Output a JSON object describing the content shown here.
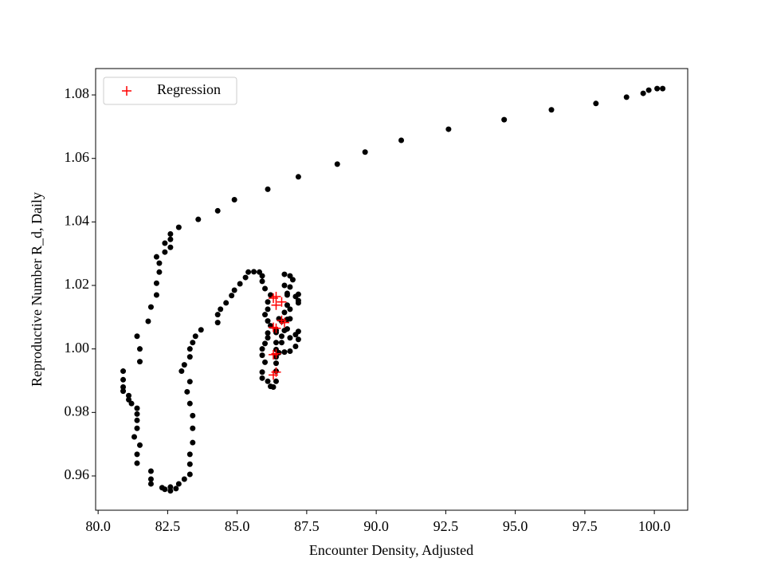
{
  "chart_data": {
    "type": "scatter",
    "xlabel": "Encounter Density, Adjusted",
    "ylabel": "Reproductive Number R_d, Daily",
    "xlim": [
      79.91,
      101.2
    ],
    "ylim": [
      0.9492,
      1.0883
    ],
    "xticks": [
      {
        "value": 80,
        "label": "80.0"
      },
      {
        "value": 82.5,
        "label": "82.5"
      },
      {
        "value": 85,
        "label": "85.0"
      },
      {
        "value": 87.5,
        "label": "87.5"
      },
      {
        "value": 90,
        "label": "90.0"
      },
      {
        "value": 92.5,
        "label": "92.5"
      },
      {
        "value": 95,
        "label": "95.0"
      },
      {
        "value": 97.5,
        "label": "97.5"
      },
      {
        "value": 100,
        "label": "100.0"
      }
    ],
    "yticks": [
      0.96,
      0.98,
      {
        "value": 1,
        "label": "1.00"
      },
      1.02,
      1.04,
      1.06,
      1.08
    ],
    "legend": "upper left",
    "series": [
      {
        "color": "#000000",
        "marker": "circle",
        "x": [
          100.3,
          100.1,
          99.8,
          99.6,
          99.0,
          97.9,
          96.3,
          94.6,
          92.6,
          90.9,
          89.6,
          88.6,
          87.2,
          86.1,
          84.9,
          84.3,
          83.6,
          82.9,
          82.6,
          82.6,
          82.6,
          82.4,
          82.4,
          82.1,
          82.2,
          82.2,
          82.1,
          82.1,
          81.9,
          81.8,
          81.5,
          81.4,
          81.5,
          80.9,
          80.9,
          80.9,
          80.9,
          81.1,
          81.1,
          81.2,
          81.4,
          81.4,
          81.4,
          81.5,
          81.3,
          81.4,
          81.4,
          81.4,
          81.9,
          81.9,
          81.9,
          82.3,
          82.4,
          82.6,
          82.6,
          82.8,
          82.9,
          83.1,
          83.3,
          83.3,
          83.3,
          83.4,
          83.4,
          83.4,
          83.3,
          83.2,
          83.3,
          83.0,
          83.1,
          83.3,
          83.3,
          83.4,
          83.5,
          83.7,
          84.3,
          84.3,
          84.4,
          84.6,
          84.8,
          84.9,
          85.1,
          85.3,
          85.4,
          85.6,
          85.8,
          85.9,
          85.9,
          86.0,
          86.2,
          86.1,
          86.1,
          86.0,
          86.1,
          86.2,
          86.4,
          86.1,
          86.0,
          85.9,
          85.9,
          86.0,
          85.9,
          85.9,
          86.1,
          86.2,
          86.3,
          86.4,
          86.4,
          86.4,
          86.4,
          86.4,
          86.6,
          86.6,
          86.8,
          86.8,
          86.7,
          86.8,
          86.8,
          86.9,
          87.0,
          86.9,
          86.7,
          86.7,
          86.8,
          87.1,
          87.2,
          87.2,
          87.2,
          86.9,
          86.9,
          86.6,
          86.5,
          86.7,
          86.9,
          87.1,
          87.2,
          87.2,
          87.1,
          86.9,
          86.7,
          86.5,
          86.4,
          86.1,
          86.4
        ],
        "values": [
          1.082,
          1.082,
          1.0815,
          1.0805,
          1.0793,
          1.0773,
          1.0753,
          1.0722,
          1.0692,
          1.0657,
          1.062,
          1.0582,
          1.0542,
          1.0503,
          1.047,
          1.0435,
          1.0408,
          1.0383,
          1.0362,
          1.0345,
          1.032,
          1.0333,
          1.0305,
          1.029,
          1.027,
          1.0242,
          1.0207,
          1.017,
          1.0132,
          1.0087,
          1.0,
          1.004,
          0.996,
          0.993,
          0.9903,
          0.988,
          0.9867,
          0.9853,
          0.984,
          0.9828,
          0.9813,
          0.9795,
          0.9775,
          0.9697,
          0.9723,
          0.975,
          0.9668,
          0.964,
          0.9615,
          0.959,
          0.9575,
          0.9563,
          0.9558,
          0.9553,
          0.9565,
          0.956,
          0.9575,
          0.959,
          0.9605,
          0.9637,
          0.9668,
          0.9705,
          0.975,
          0.979,
          0.9828,
          0.9865,
          0.9897,
          0.993,
          0.995,
          0.9975,
          1.0,
          1.002,
          1.004,
          1.006,
          1.0083,
          1.0108,
          1.0125,
          1.0145,
          1.0168,
          1.0185,
          1.0205,
          1.0225,
          1.0242,
          1.0243,
          1.0242,
          1.023,
          1.0213,
          1.019,
          1.017,
          1.0148,
          1.0125,
          1.0108,
          1.0088,
          1.0073,
          1.0058,
          1.0035,
          1.0017,
          1.0,
          0.998,
          0.9958,
          0.9927,
          0.9908,
          0.9898,
          0.9882,
          0.988,
          0.9898,
          0.993,
          0.9955,
          0.9975,
          0.9998,
          1.002,
          1.004,
          1.0063,
          1.0093,
          1.0115,
          1.0138,
          1.017,
          1.0195,
          1.0218,
          1.023,
          1.0235,
          1.02,
          1.0175,
          1.0165,
          1.0145,
          1.0152,
          1.0172,
          1.0125,
          1.0095,
          1.0087,
          1.0095,
          1.0058,
          1.0035,
          1.0045,
          1.0055,
          1.003,
          1.0008,
          0.9993,
          0.999,
          0.9988,
          1.002,
          1.005,
          1.0052
        ]
      },
      {
        "name": "Regression",
        "color": "#ff0000",
        "marker": "plus",
        "x": [
          86.3,
          86.4,
          86.4,
          86.6,
          86.3,
          86.6,
          86.7,
          86.3,
          86.4,
          86.4,
          86.3,
          86.4
        ],
        "values": [
          1.016,
          1.0165,
          1.0138,
          1.0148,
          1.0068,
          1.009,
          1.0083,
          0.9982,
          0.9985,
          0.9927,
          0.9918,
          1.0065
        ]
      }
    ]
  }
}
